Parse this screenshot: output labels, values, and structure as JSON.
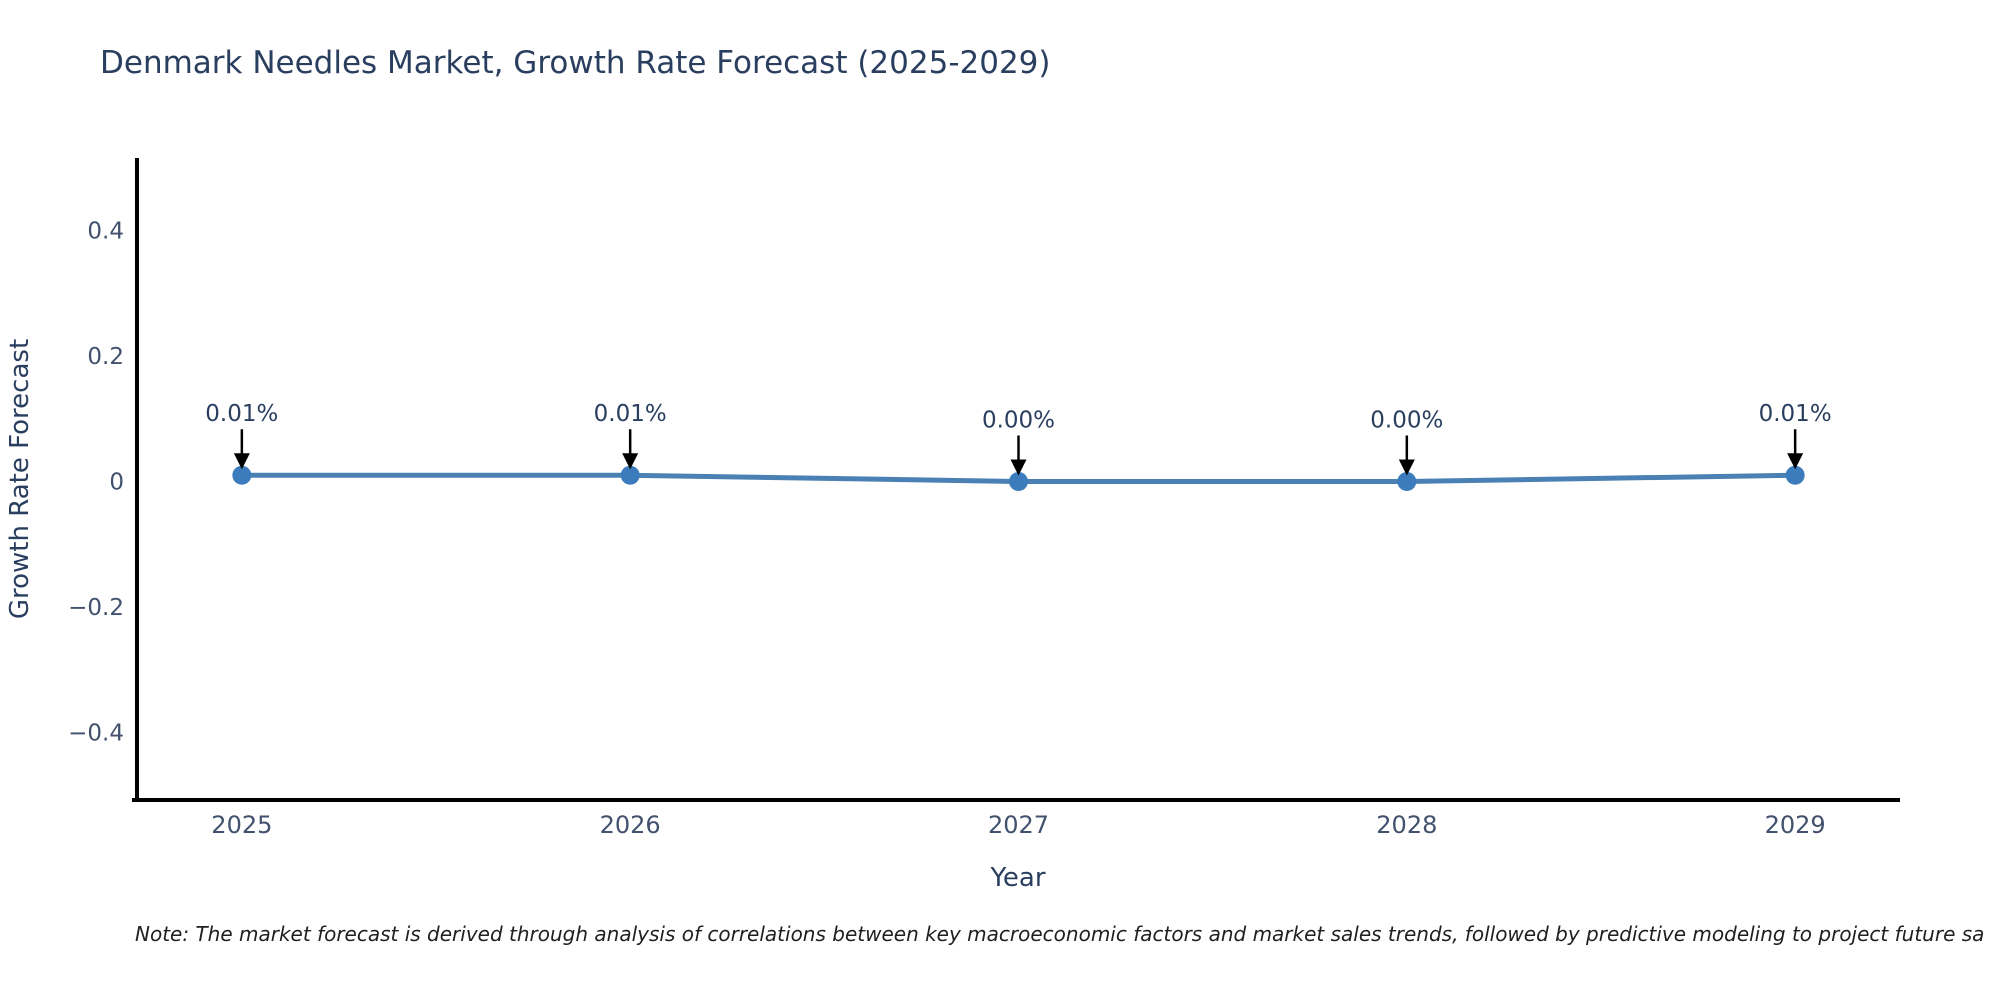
{
  "footnote": "Note: The market forecast is derived through analysis of correlations between key macroeconomic factors and market sales trends, followed by predictive modeling to project future sa",
  "chart_data": {
    "type": "line",
    "title": "Denmark Needles Market, Growth Rate Forecast (2025-2029)",
    "xlabel": "Year",
    "ylabel": "Growth Rate Forecast",
    "x": [
      2025,
      2026,
      2027,
      2028,
      2029
    ],
    "xtick_labels": [
      "2025",
      "2026",
      "2027",
      "2028",
      "2029"
    ],
    "series": [
      {
        "name": "Growth Rate Forecast",
        "values": [
          0.01,
          0.01,
          0.0,
          0.0,
          0.01
        ]
      }
    ],
    "point_labels": [
      "0.01%",
      "0.01%",
      "0.00%",
      "0.00%",
      "0.01%"
    ],
    "yticks": [
      -0.4,
      -0.2,
      0,
      0.2,
      0.4
    ],
    "ytick_labels": [
      "−0.4",
      "−0.2",
      "0",
      "0.2",
      "0.4"
    ],
    "xlim": [
      2024.73,
      2029.27
    ],
    "ylim": [
      -0.508,
      0.516
    ],
    "grid": false,
    "legend": "none",
    "annotation_style": "value label above point with downward black arrow",
    "colors": {
      "line": "#4a80b4",
      "marker": "#3c7cbc",
      "axis": "#000000",
      "title_text": "#2a3f5f",
      "tick_text": "#42516d",
      "annotation_text": "#2a3f5f",
      "arrow": "#000000",
      "note_text": "#1f1f1f",
      "background": "#ffffff"
    }
  }
}
